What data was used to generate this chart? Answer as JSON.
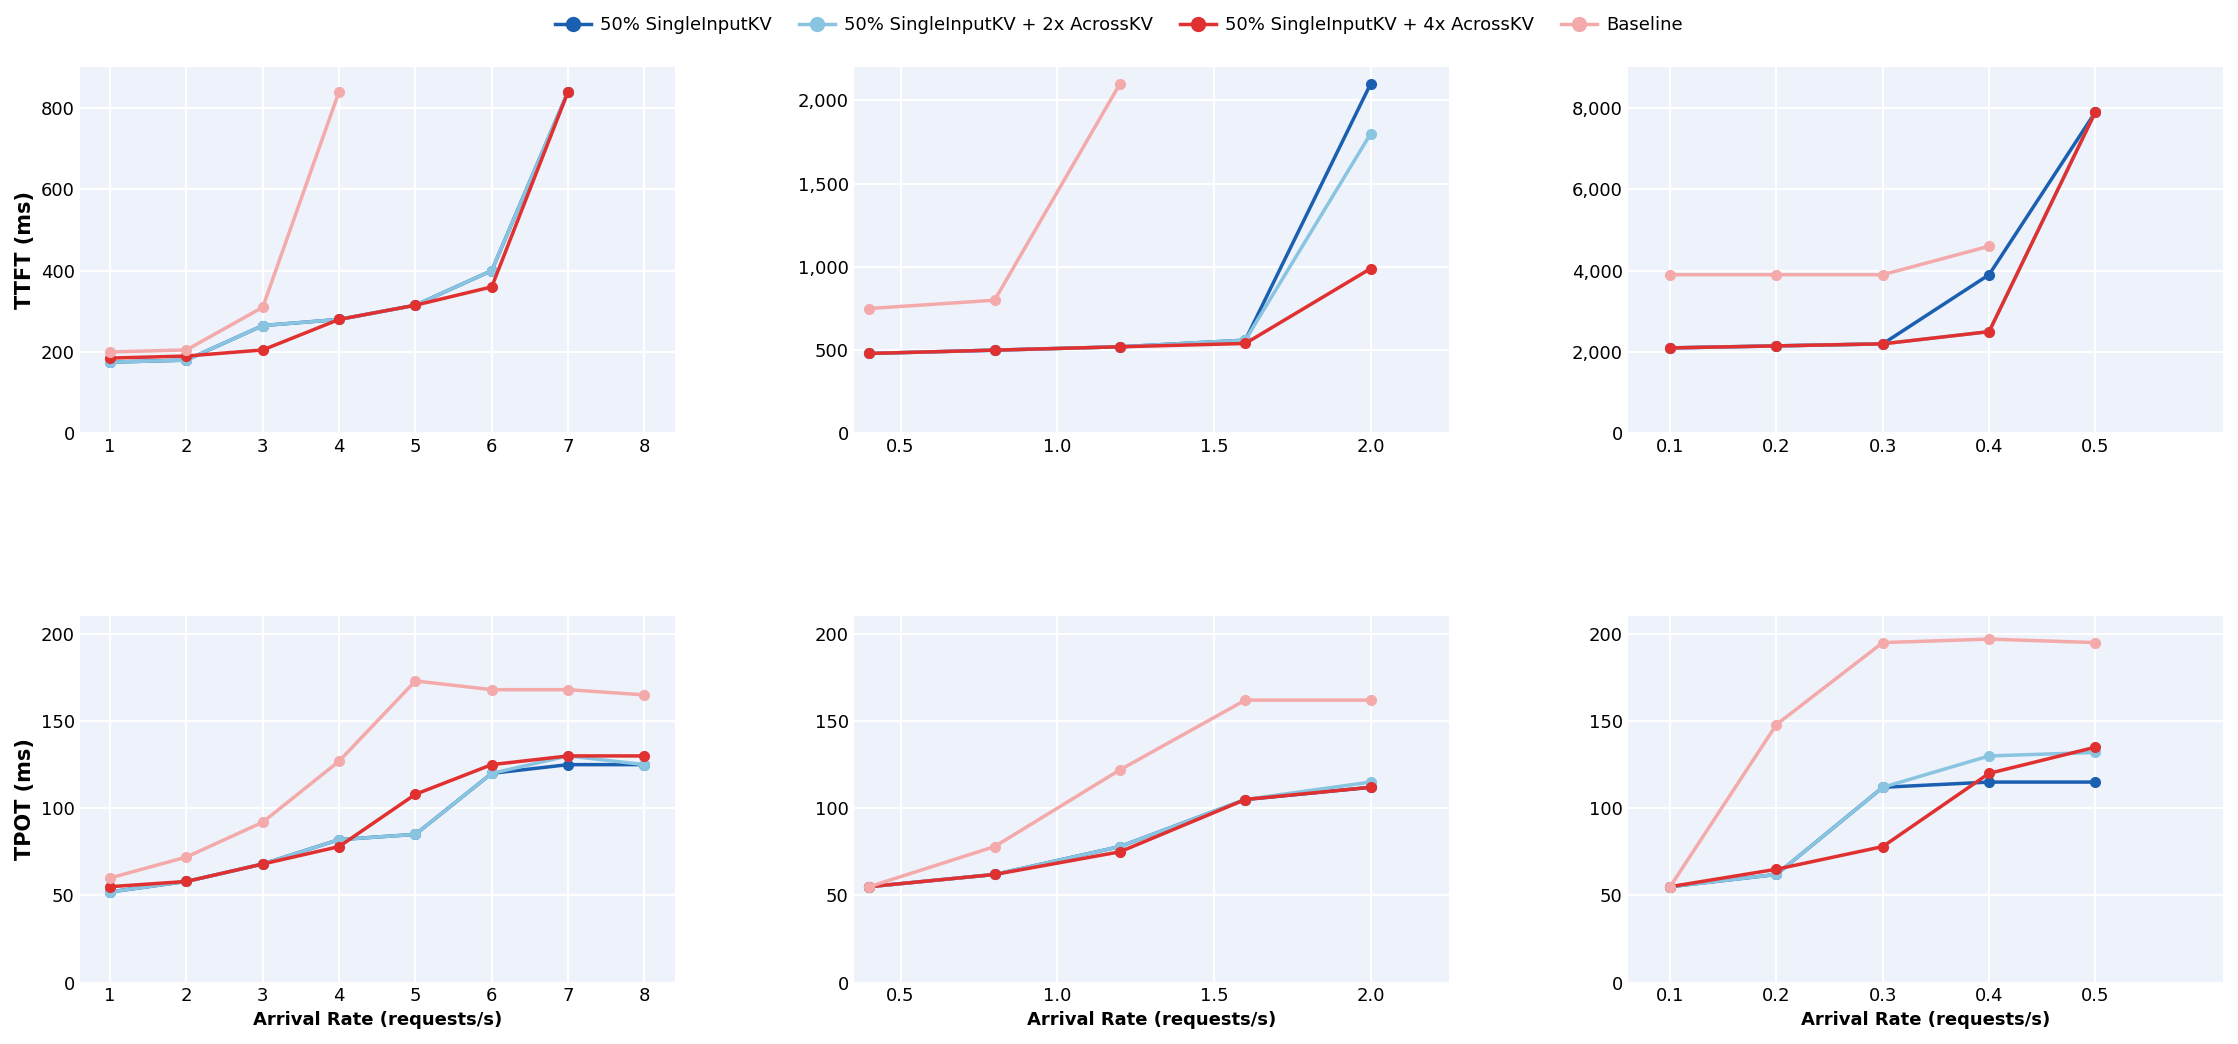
{
  "legend_labels": [
    "50% SingleInputKV",
    "50% SingleInputKV + 2x AcrossKV",
    "50% SingleInputKV + 4x AcrossKV",
    "Baseline"
  ],
  "colors": [
    "#1a5fb0",
    "#89c4e1",
    "#e03030",
    "#f4aaaa"
  ],
  "marker": "o",
  "linewidth": 2.5,
  "markersize": 7,
  "ttft": {
    "col0": {
      "x_ticks": [
        1,
        2,
        3,
        4,
        5,
        6,
        7,
        8
      ],
      "xlim": [
        0.6,
        8.4
      ],
      "ylim": [
        0,
        900
      ],
      "yticks": [
        0,
        200,
        400,
        600,
        800
      ],
      "data": {
        "dark_blue": [
          1,
          2,
          3,
          4,
          5,
          6,
          7
        ],
        "dark_blue_y": [
          175,
          180,
          265,
          280,
          315,
          400,
          840
        ],
        "light_blue": [
          1,
          2,
          3,
          4,
          5,
          6,
          7
        ],
        "light_blue_y": [
          175,
          180,
          265,
          280,
          315,
          400,
          840
        ],
        "red": [
          1,
          2,
          3,
          4,
          5,
          6,
          7
        ],
        "red_y": [
          185,
          190,
          205,
          280,
          315,
          360,
          840
        ],
        "pink": [
          1,
          2,
          3,
          4
        ],
        "pink_y": [
          200,
          205,
          310,
          840
        ]
      }
    },
    "col1": {
      "x_ticks": [
        0.5,
        1.0,
        1.5,
        2.0
      ],
      "xlim": [
        0.35,
        2.25
      ],
      "ylim": [
        0,
        2200
      ],
      "yticks": [
        0,
        500,
        1000,
        1500,
        2000
      ],
      "data": {
        "dark_blue": [
          0.4,
          0.8,
          1.2,
          1.6,
          2.0
        ],
        "dark_blue_y": [
          480,
          500,
          520,
          560,
          2100
        ],
        "light_blue": [
          0.4,
          0.8,
          1.2,
          1.6,
          2.0
        ],
        "light_blue_y": [
          480,
          500,
          520,
          560,
          1800
        ],
        "red": [
          0.4,
          0.8,
          1.2,
          1.6,
          2.0
        ],
        "red_y": [
          480,
          500,
          520,
          540,
          990
        ],
        "pink": [
          0.4,
          0.8,
          1.2
        ],
        "pink_y": [
          750,
          800,
          2100
        ]
      }
    },
    "col2": {
      "x_ticks": [
        0.1,
        0.2,
        0.3,
        0.4,
        0.5
      ],
      "xlim": [
        0.06,
        0.62
      ],
      "ylim": [
        0,
        9000
      ],
      "yticks": [
        0,
        2000,
        4000,
        6000,
        8000
      ],
      "data": {
        "dark_blue": [
          0.1,
          0.2,
          0.3,
          0.4,
          0.5
        ],
        "dark_blue_y": [
          2100,
          2150,
          2200,
          3900,
          7900
        ],
        "light_blue": [
          0.1,
          0.2,
          0.3,
          0.4,
          0.5
        ],
        "light_blue_y": [
          2100,
          2150,
          2200,
          2500,
          7900
        ],
        "red": [
          0.1,
          0.2,
          0.3,
          0.4,
          0.5
        ],
        "red_y": [
          2100,
          2150,
          2200,
          2500,
          7900
        ],
        "pink": [
          0.1,
          0.2,
          0.3,
          0.4
        ],
        "pink_y": [
          3900,
          3900,
          3900,
          4600
        ]
      }
    }
  },
  "tpot": {
    "col0": {
      "x_ticks": [
        1,
        2,
        3,
        4,
        5,
        6,
        7,
        8
      ],
      "xlim": [
        0.6,
        8.4
      ],
      "ylim": [
        0,
        210
      ],
      "yticks": [
        0,
        50,
        100,
        150,
        200
      ],
      "data": {
        "dark_blue": [
          1,
          2,
          3,
          4,
          5,
          6,
          7,
          8
        ],
        "dark_blue_y": [
          52,
          58,
          68,
          82,
          85,
          120,
          125,
          125
        ],
        "light_blue": [
          1,
          2,
          3,
          4,
          5,
          6,
          7,
          8
        ],
        "light_blue_y": [
          52,
          58,
          68,
          82,
          85,
          120,
          130,
          125
        ],
        "red": [
          1,
          2,
          3,
          4,
          5,
          6,
          7,
          8
        ],
        "red_y": [
          55,
          58,
          68,
          78,
          108,
          125,
          130,
          130
        ],
        "pink": [
          1,
          2,
          3,
          4,
          5,
          6,
          7,
          8
        ],
        "pink_y": [
          60,
          72,
          92,
          127,
          173,
          168,
          168,
          165
        ]
      }
    },
    "col1": {
      "x_ticks": [
        0.5,
        1.0,
        1.5,
        2.0
      ],
      "xlim": [
        0.35,
        2.25
      ],
      "ylim": [
        0,
        210
      ],
      "yticks": [
        0,
        50,
        100,
        150,
        200
      ],
      "data": {
        "dark_blue": [
          0.4,
          0.8,
          1.2,
          1.6,
          2.0
        ],
        "dark_blue_y": [
          55,
          62,
          78,
          105,
          112
        ],
        "light_blue": [
          0.4,
          0.8,
          1.2,
          1.6,
          2.0
        ],
        "light_blue_y": [
          55,
          62,
          78,
          105,
          115
        ],
        "red": [
          0.4,
          0.8,
          1.2,
          1.6,
          2.0
        ],
        "red_y": [
          55,
          62,
          75,
          105,
          112
        ],
        "pink": [
          0.4,
          0.8,
          1.2,
          1.6,
          2.0
        ],
        "pink_y": [
          55,
          78,
          122,
          162,
          162
        ]
      }
    },
    "col2": {
      "x_ticks": [
        0.1,
        0.2,
        0.3,
        0.4,
        0.5
      ],
      "xlim": [
        0.06,
        0.62
      ],
      "ylim": [
        0,
        210
      ],
      "yticks": [
        0,
        50,
        100,
        150,
        200
      ],
      "data": {
        "dark_blue": [
          0.1,
          0.2,
          0.3,
          0.4,
          0.5
        ],
        "dark_blue_y": [
          55,
          62,
          112,
          115,
          115
        ],
        "light_blue": [
          0.1,
          0.2,
          0.3,
          0.4,
          0.5
        ],
        "light_blue_y": [
          55,
          62,
          112,
          130,
          132
        ],
        "red": [
          0.1,
          0.2,
          0.3,
          0.4,
          0.5
        ],
        "red_y": [
          55,
          65,
          78,
          120,
          135
        ],
        "pink": [
          0.1,
          0.2,
          0.3,
          0.4,
          0.5
        ],
        "pink_y": [
          55,
          148,
          195,
          197,
          195
        ]
      }
    }
  },
  "ylabel_ttft": "TTFT (ms)",
  "ylabel_tpot": "TPOT (ms)",
  "xlabel": "Arrival Rate (requests/s)",
  "background_color": "#edf2fb",
  "grid_color": "#ffffff"
}
